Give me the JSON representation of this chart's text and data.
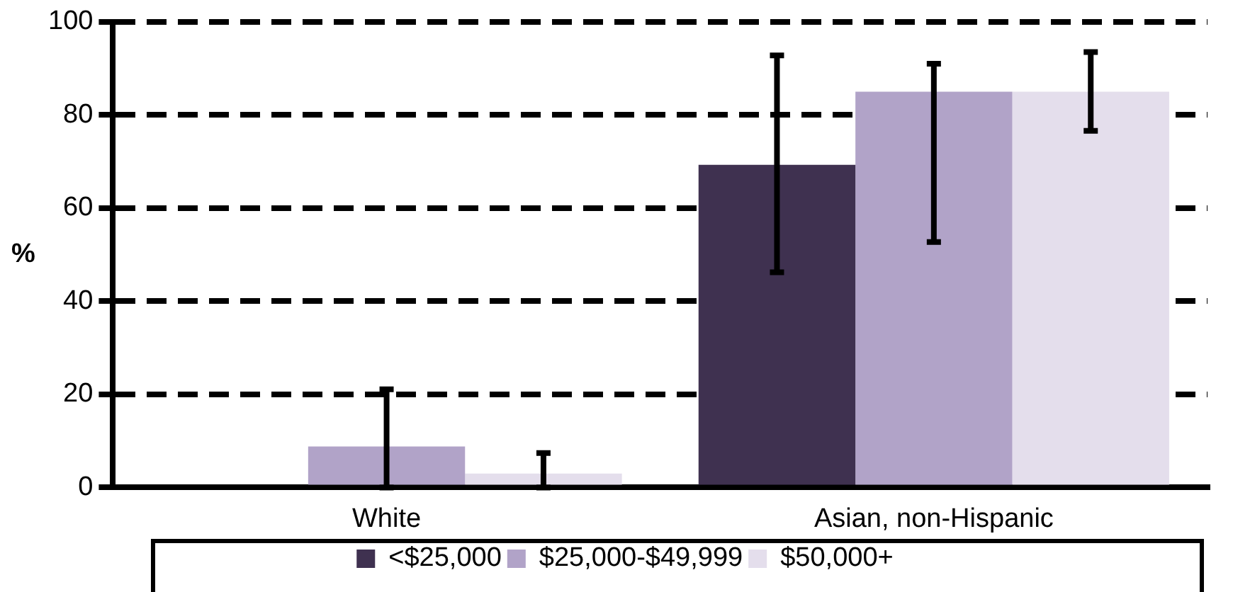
{
  "chart_data": {
    "type": "bar",
    "ylabel": "%",
    "categories": [
      "White",
      "Asian, non-Hispanic"
    ],
    "series": [
      {
        "name": "<$25,000",
        "color": "#3f3150",
        "values": [
          null,
          69.3
        ],
        "errors": [
          null,
          [
            46.2,
            92.8
          ]
        ]
      },
      {
        "name": "$25,000-$49,999",
        "color": "#b1a3c8",
        "values": [
          8.8,
          85
        ],
        "errors": [
          [
            0,
            21.1
          ],
          [
            52.7,
            91
          ]
        ]
      },
      {
        "name": "$50,000+",
        "color": "#e4deec",
        "values": [
          3,
          85
        ],
        "errors": [
          [
            0,
            7.4
          ],
          [
            76.6,
            93.5
          ]
        ]
      }
    ],
    "ylim": [
      0,
      100
    ],
    "yticks": [
      0,
      20,
      40,
      60,
      80,
      100
    ],
    "grid": "y",
    "line_style": "dashed",
    "legend": "bottom"
  }
}
